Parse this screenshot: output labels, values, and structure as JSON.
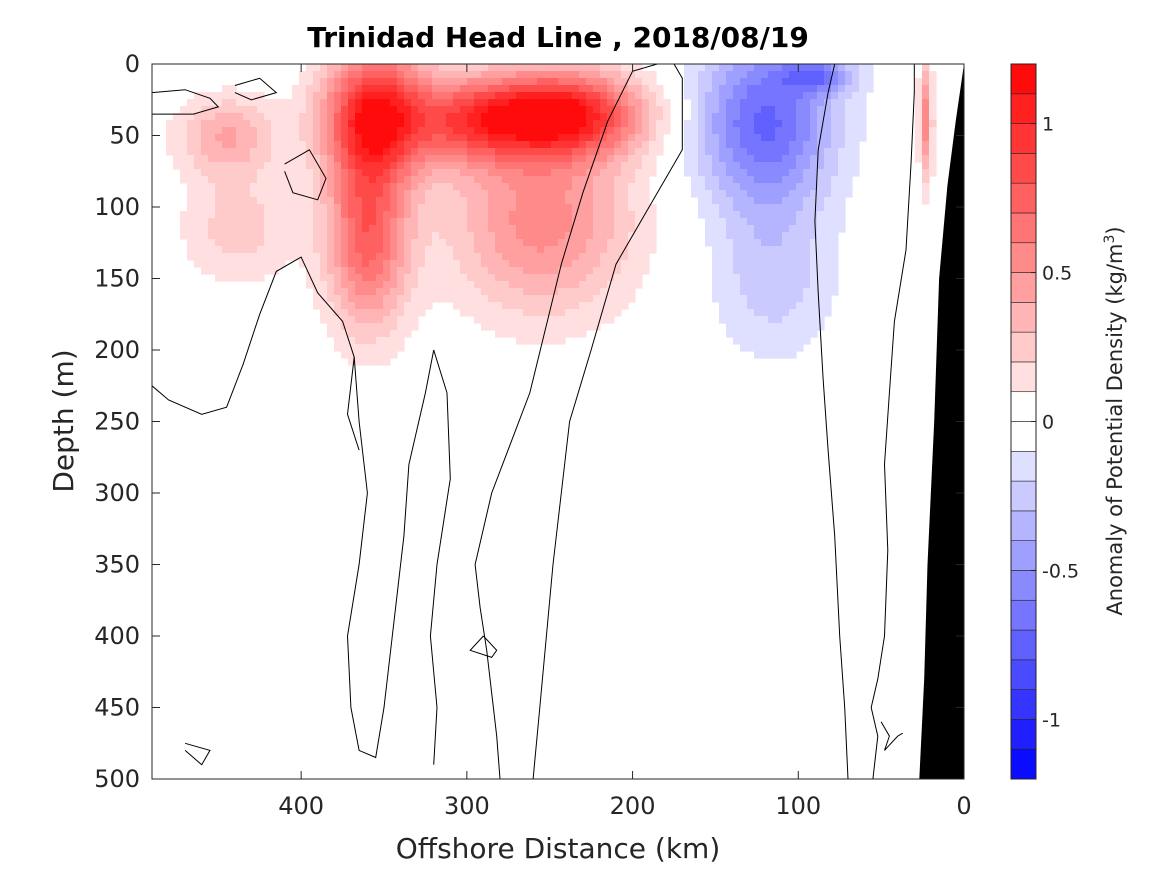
{
  "chart_data": {
    "type": "heatmap",
    "title": "Trinidad Head Line , 2018/08/19",
    "xlabel": "Offshore Distance (km)",
    "ylabel": "Depth (m)",
    "colorbar_label": "Anomaly of Potential Density (kg/m",
    "colorbar_label_sup": "3",
    "colorbar_label_end": ")",
    "xlim": [
      490,
      0
    ],
    "ylim": [
      500,
      0
    ],
    "x_reversed": true,
    "y_reversed": true,
    "x_ticks": [
      400,
      300,
      200,
      100,
      0
    ],
    "x_tick_labels": [
      "400",
      "300",
      "200",
      "100",
      "0"
    ],
    "y_ticks": [
      0,
      50,
      100,
      150,
      200,
      250,
      300,
      350,
      400,
      450,
      500
    ],
    "y_tick_labels": [
      "0",
      "50",
      "100",
      "150",
      "200",
      "250",
      "300",
      "350",
      "400",
      "450",
      "500"
    ],
    "clim": [
      -1.2,
      1.2
    ],
    "colorbar_ticks": [
      1,
      0.5,
      0,
      -0.5,
      -1
    ],
    "colorbar_tick_labels": [
      "1",
      "0.5",
      "0",
      "-0.5",
      "-1"
    ],
    "colormap": "blue-white-red",
    "positive_color": "#ff0000",
    "negative_color": "#0000ff",
    "zero_color": "#ffffff",
    "bottom_color": "#000000",
    "grid": false,
    "anomaly_features": [
      {
        "name": "northwest shallow positive",
        "x": 445,
        "depth": 50,
        "sx": 30,
        "sz": 28,
        "value": 0.4
      },
      {
        "name": "northwest mid positive",
        "x": 438,
        "depth": 115,
        "sx": 35,
        "sz": 40,
        "value": 0.25
      },
      {
        "name": "core positive 1",
        "x": 355,
        "depth": 35,
        "sx": 32,
        "sz": 45,
        "value": 1.05
      },
      {
        "name": "core positive 1 deep",
        "x": 360,
        "depth": 120,
        "sx": 25,
        "sz": 65,
        "value": 0.75
      },
      {
        "name": "core positive 2",
        "x": 245,
        "depth": 35,
        "sx": 50,
        "sz": 30,
        "value": 1.12
      },
      {
        "name": "core positive 2 deep",
        "x": 255,
        "depth": 110,
        "sx": 55,
        "sz": 65,
        "value": 0.55
      },
      {
        "name": "bridge positive",
        "x": 300,
        "depth": 40,
        "sx": 35,
        "sz": 30,
        "value": 0.55
      },
      {
        "name": "offshore negative",
        "x": 120,
        "depth": 40,
        "sx": 42,
        "sz": 60,
        "value": -0.72
      },
      {
        "name": "offshore negative deep",
        "x": 115,
        "depth": 150,
        "sx": 38,
        "sz": 60,
        "value": -0.25
      },
      {
        "name": "surface negative",
        "x": 88,
        "depth": 8,
        "sx": 22,
        "sz": 12,
        "value": -0.45
      },
      {
        "name": "nearshore positive",
        "x": 23,
        "depth": 40,
        "sx": 4,
        "sz": 45,
        "value": 0.55
      }
    ],
    "zero_contours": [
      [
        [
          490,
          20
        ],
        [
          470,
          18
        ],
        [
          455,
          24
        ],
        [
          450,
          30
        ],
        [
          465,
          35
        ],
        [
          490,
          35
        ]
      ],
      [
        [
          440,
          15
        ],
        [
          425,
          10
        ],
        [
          415,
          20
        ],
        [
          430,
          25
        ],
        [
          440,
          20
        ]
      ],
      [
        [
          410,
          70
        ],
        [
          395,
          60
        ],
        [
          385,
          80
        ],
        [
          390,
          95
        ],
        [
          405,
          90
        ],
        [
          410,
          75
        ]
      ],
      [
        [
          490,
          225
        ],
        [
          480,
          235
        ],
        [
          460,
          245
        ],
        [
          445,
          240
        ],
        [
          435,
          210
        ],
        [
          425,
          175
        ],
        [
          415,
          145
        ],
        [
          400,
          135
        ],
        [
          390,
          160
        ],
        [
          375,
          180
        ],
        [
          368,
          205
        ],
        [
          372,
          245
        ],
        [
          365,
          270
        ]
      ],
      [
        [
          368,
          205
        ],
        [
          365,
          250
        ],
        [
          360,
          300
        ],
        [
          365,
          350
        ],
        [
          372,
          400
        ],
        [
          370,
          450
        ],
        [
          365,
          480
        ],
        [
          355,
          485
        ],
        [
          350,
          450
        ],
        [
          345,
          400
        ],
        [
          338,
          330
        ],
        [
          335,
          280
        ],
        [
          325,
          230
        ],
        [
          320,
          200
        ],
        [
          312,
          230
        ],
        [
          310,
          290
        ],
        [
          318,
          350
        ],
        [
          322,
          400
        ],
        [
          318,
          450
        ],
        [
          320,
          490
        ]
      ],
      [
        [
          290,
          400
        ],
        [
          282,
          410
        ],
        [
          285,
          415
        ],
        [
          298,
          410
        ],
        [
          290,
          400
        ]
      ],
      [
        [
          470,
          475
        ],
        [
          455,
          480
        ],
        [
          460,
          490
        ],
        [
          470,
          480
        ]
      ],
      [
        [
          280,
          500
        ],
        [
          282,
          470
        ],
        [
          285,
          440
        ],
        [
          288,
          410
        ],
        [
          292,
          380
        ],
        [
          295,
          350
        ],
        [
          285,
          300
        ],
        [
          262,
          230
        ],
        [
          243,
          140
        ],
        [
          230,
          90
        ],
        [
          215,
          40
        ],
        [
          200,
          5
        ],
        [
          185,
          0
        ]
      ],
      [
        [
          260,
          500
        ],
        [
          256,
          450
        ],
        [
          252,
          400
        ],
        [
          248,
          350
        ],
        [
          243,
          300
        ],
        [
          238,
          250
        ],
        [
          225,
          200
        ],
        [
          210,
          140
        ],
        [
          190,
          100
        ],
        [
          170,
          60
        ],
        [
          170,
          10
        ],
        [
          175,
          0
        ]
      ],
      [
        [
          70,
          500
        ],
        [
          72,
          450
        ],
        [
          75,
          400
        ],
        [
          78,
          330
        ],
        [
          82,
          270
        ],
        [
          85,
          220
        ],
        [
          88,
          160
        ],
        [
          90,
          110
        ],
        [
          88,
          60
        ],
        [
          82,
          20
        ],
        [
          78,
          0
        ]
      ],
      [
        [
          55,
          500
        ],
        [
          52,
          470
        ],
        [
          56,
          450
        ],
        [
          52,
          430
        ],
        [
          48,
          400
        ],
        [
          46,
          340
        ],
        [
          48,
          280
        ],
        [
          45,
          230
        ],
        [
          42,
          180
        ],
        [
          35,
          130
        ],
        [
          32,
          70
        ],
        [
          30,
          20
        ],
        [
          30,
          0
        ]
      ],
      [
        [
          50,
          460
        ],
        [
          45,
          470
        ],
        [
          48,
          480
        ],
        [
          40,
          470
        ],
        [
          37,
          468
        ]
      ],
      [
        [
          30,
          0
        ],
        [
          22,
          0
        ]
      ]
    ],
    "bathymetry": [
      [
        0,
        0
      ],
      [
        5,
        40
      ],
      [
        10,
        85
      ],
      [
        15,
        150
      ],
      [
        18,
        250
      ],
      [
        22,
        350
      ],
      [
        24,
        430
      ],
      [
        27,
        500
      ],
      [
        0,
        500
      ]
    ]
  }
}
